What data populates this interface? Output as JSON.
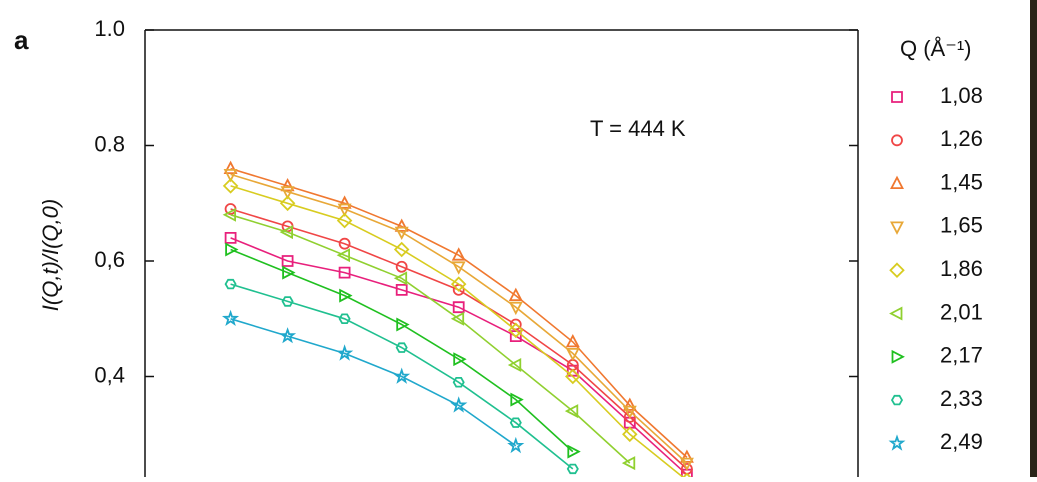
{
  "chart_data": {
    "type": "scatter",
    "panel_label": "a",
    "y_label": "I(Q,t)/I(Q,0)",
    "annotation": "T = 444 K",
    "legend_title": "Q (Å⁻¹)",
    "xlim": [
      0,
      1
    ],
    "ylim": [
      0.2,
      1.0
    ],
    "yticks": [
      {
        "value": 1.0,
        "label": "1.0"
      },
      0.8,
      {
        "value": 0.6,
        "label": "0,6"
      },
      {
        "value": 0.4,
        "label": "0,4"
      }
    ],
    "x": [
      0.12,
      0.2,
      0.28,
      0.36,
      0.44,
      0.52,
      0.6,
      0.68,
      0.76
    ],
    "series": [
      {
        "name": "1,08",
        "color": "#e8207c",
        "marker": "square",
        "values": [
          0.64,
          0.6,
          0.58,
          0.55,
          0.52,
          0.47,
          0.41,
          0.32,
          0.23
        ]
      },
      {
        "name": "1,26",
        "color": "#f04646",
        "marker": "circle",
        "values": [
          0.69,
          0.66,
          0.63,
          0.59,
          0.55,
          0.49,
          0.42,
          0.33,
          0.24
        ]
      },
      {
        "name": "1,45",
        "color": "#f07830",
        "marker": "triangle-up",
        "values": [
          0.76,
          0.73,
          0.7,
          0.66,
          0.61,
          0.54,
          0.46,
          0.35,
          0.26
        ]
      },
      {
        "name": "1,65",
        "color": "#e8a838",
        "marker": "triangle-down",
        "values": [
          0.75,
          0.72,
          0.69,
          0.65,
          0.59,
          0.52,
          0.44,
          0.34,
          0.25
        ]
      },
      {
        "name": "1,86",
        "color": "#d8cc20",
        "marker": "diamond",
        "values": [
          0.73,
          0.7,
          0.67,
          0.62,
          0.56,
          0.48,
          0.4,
          0.3,
          0.22
        ]
      },
      {
        "name": "2,01",
        "color": "#90d030",
        "marker": "triangle-left",
        "values": [
          0.68,
          0.65,
          0.61,
          0.57,
          0.5,
          0.42,
          0.34,
          0.25,
          null
        ]
      },
      {
        "name": "2,17",
        "color": "#20c020",
        "marker": "triangle-right",
        "values": [
          0.62,
          0.58,
          0.54,
          0.49,
          0.43,
          0.36,
          0.27,
          null,
          null
        ]
      },
      {
        "name": "2,33",
        "color": "#20c090",
        "marker": "hexagon",
        "values": [
          0.56,
          0.53,
          0.5,
          0.45,
          0.39,
          0.32,
          0.24,
          null,
          null
        ]
      },
      {
        "name": "2,49",
        "color": "#20a8cc",
        "marker": "star",
        "values": [
          0.5,
          0.47,
          0.44,
          0.4,
          0.35,
          0.28,
          null,
          null,
          null
        ]
      }
    ]
  }
}
